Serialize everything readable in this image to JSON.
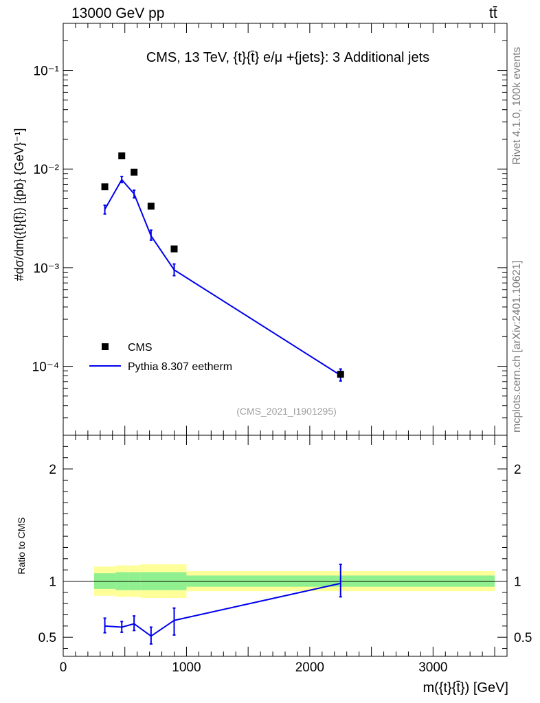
{
  "header": {
    "left": "13000 GeV pp",
    "right": "tt̄"
  },
  "side": {
    "rivet": "Rivet 4.1.0,  100k events",
    "mcplots": "mcplots.cern.ch [arXiv:2401.10621]"
  },
  "colors": {
    "data": "#000000",
    "mc": "#0000ee",
    "band_inner": "#90f090",
    "band_outer": "#ffff9a"
  },
  "chart_data": [
    {
      "type": "scatter",
      "panel": "main",
      "title": "CMS, 13 TeV, {t}{t̄} e/μ +{jets}: 3 Additional jets",
      "watermark": "(CMS_2021_I1901295)",
      "ylabel": "#dσ/dm({t}{t̄}) [{pb} {GeV}⁻¹]",
      "yscale": "log",
      "ylim": [
        2e-05,
        0.3
      ],
      "xlim": [
        0,
        3600
      ],
      "ytick_labels": [
        "10⁻⁴",
        "10⁻³",
        "10⁻²",
        "10⁻¹"
      ],
      "ytick_values": [
        0.0001,
        0.001,
        0.01,
        0.1
      ],
      "legend": [
        "CMS",
        "Pythia 8.307 eetherm"
      ],
      "series": [
        {
          "name": "CMS",
          "style": "markers",
          "x": [
            337.5,
            475,
            575,
            712.5,
            900,
            2250
          ],
          "y": [
            0.0066,
            0.0136,
            0.0093,
            0.0042,
            0.00155,
            8.3e-05
          ]
        },
        {
          "name": "Pythia 8.307 eetherm",
          "style": "line",
          "x": [
            337.5,
            475,
            575,
            712.5,
            900,
            2250
          ],
          "y": [
            0.0039,
            0.0078,
            0.0056,
            0.0021,
            0.00095,
            8.1e-05
          ],
          "err_lo": [
            0.0035,
            0.0073,
            0.0051,
            0.0019,
            0.00083,
            7.1e-05
          ],
          "err_hi": [
            0.0043,
            0.0084,
            0.0061,
            0.0024,
            0.00109,
            9.4e-05
          ]
        }
      ]
    },
    {
      "type": "line",
      "panel": "ratio",
      "ylabel": "Ratio to CMS",
      "xlabel": "m({t}{t̄}) [GeV]",
      "ylim": [
        0.33,
        2.3
      ],
      "xlim": [
        0,
        3600
      ],
      "xtick_labels": [
        "0",
        "1000",
        "2000",
        "3000"
      ],
      "xtick_values": [
        0,
        1000,
        2000,
        3000
      ],
      "ytick_labels": [
        "0.5",
        "1",
        "2"
      ],
      "ytick_values": [
        0.5,
        1,
        2
      ],
      "reference": 1,
      "bands": {
        "edges": [
          250,
          425,
          525,
          625,
          800,
          1000,
          3500
        ],
        "inner_lo": [
          0.93,
          0.92,
          0.92,
          0.92,
          0.92,
          0.95
        ],
        "inner_hi": [
          1.07,
          1.08,
          1.08,
          1.08,
          1.08,
          1.05
        ],
        "outer_lo": [
          0.87,
          0.86,
          0.86,
          0.85,
          0.85,
          0.91
        ],
        "outer_hi": [
          1.13,
          1.14,
          1.14,
          1.15,
          1.15,
          1.09
        ]
      },
      "series": [
        {
          "name": "Pythia 8.307 eetherm",
          "x": [
            337.5,
            475,
            575,
            712.5,
            900,
            2250
          ],
          "y": [
            0.6,
            0.59,
            0.62,
            0.51,
            0.65,
            0.98
          ],
          "err_lo": [
            0.54,
            0.545,
            0.56,
            0.44,
            0.52,
            0.86
          ],
          "err_hi": [
            0.67,
            0.64,
            0.69,
            0.59,
            0.76,
            1.15
          ]
        }
      ]
    }
  ]
}
